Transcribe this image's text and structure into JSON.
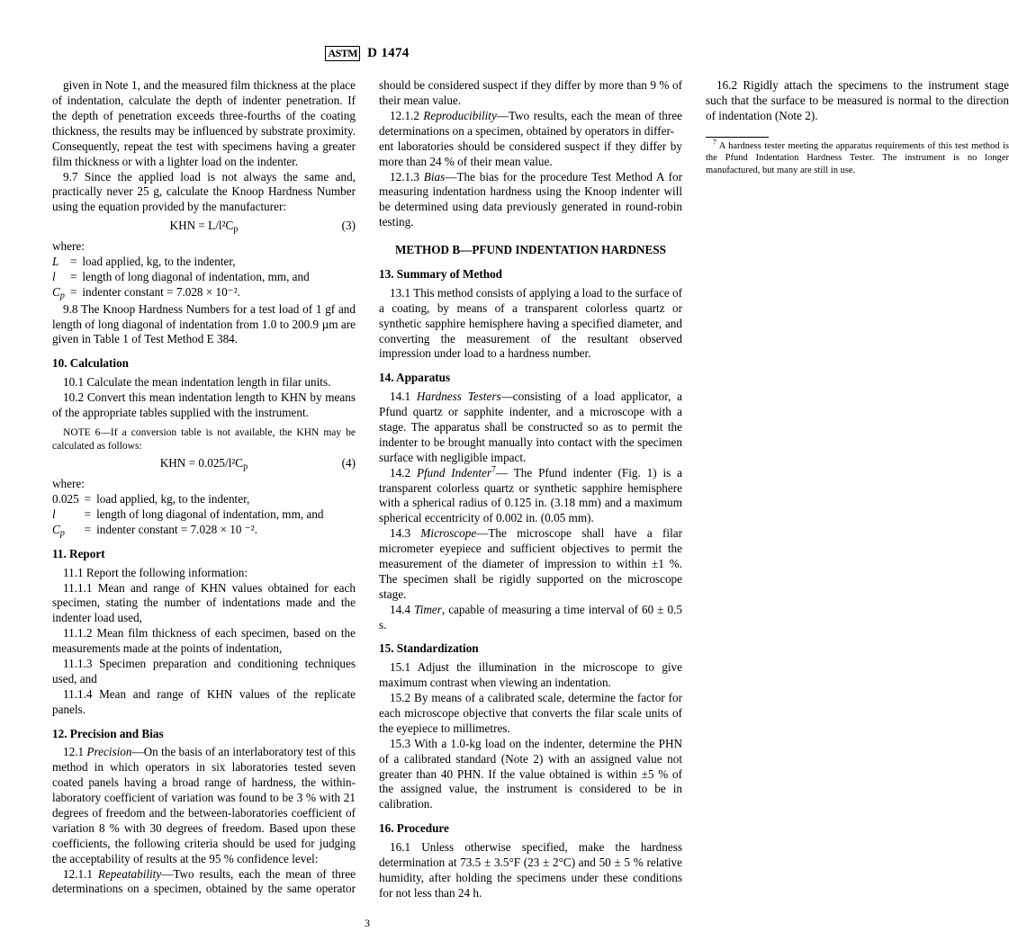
{
  "header": {
    "logo": "ASTM",
    "designation": "D 1474"
  },
  "left": {
    "p97a": "given in Note 1, and the measured film thickness at the place of indentation, calculate the depth of indenter penetration. If the depth of penetration exceeds three-fourths of the coating thickness, the results may be influenced by substrate proximity. Consequently, repeat the test with specimens having a greater film thickness or with a lighter load on the indenter.",
    "p97": "9.7 Since the applied load is not always the same and, practically never 25 g, calculate the Knoop Hardness Number using the equation provided by the manufacturer:",
    "eq3": "KHN = L/l²C",
    "eq3sub": "p",
    "eq3num": "(3)",
    "where": "where:",
    "defs1": [
      {
        "sym": "L",
        "eq": "=",
        "val": "load applied, kg, to the indenter,"
      },
      {
        "sym": "l",
        "eq": "=",
        "val": "length of long diagonal of indentation, mm, and"
      },
      {
        "sym": "C",
        "sub": "p",
        "eq": "=",
        "val": "indenter constant = 7.028 × 10⁻²."
      }
    ],
    "p98": "9.8 The Knoop Hardness Numbers for a test load of 1 gf and length of long diagonal of indentation from 1.0 to 200.9 µm are given in Table 1 of Test Method E 384.",
    "s10": "10.  Calculation",
    "p101": "10.1 Calculate the mean indentation length in filar units.",
    "p102": "10.2 Convert this mean indentation length to KHN by means of the appropriate tables supplied with the instrument.",
    "note6a": "N",
    "note6b": "OTE",
    "note6c": " 6—If a conversion table is not available, the KHN may be calculated as follows:",
    "eq4": "KHN = 0.025/l²C",
    "eq4sub": "p",
    "eq4num": "(4)",
    "defs2": [
      {
        "sym": "0.025",
        "eq": "=",
        "val": "load applied, kg, to the indenter,"
      },
      {
        "sym": "l",
        "eq": "=",
        "val": "length of long diagonal of indentation, mm, and"
      },
      {
        "sym": "C",
        "sub": "p",
        "eq": "=",
        "val": "indenter constant = 7.028 × 10 ⁻²."
      }
    ],
    "s11": "11.  Report",
    "p111": "11.1 Report the following information:",
    "p1111": "11.1.1 Mean and range of KHN values obtained for each specimen, stating the number of indentations made and the indenter load used,",
    "p1112": "11.1.2 Mean film thickness of each specimen, based on the measurements made at the points of indentation,",
    "p1113": "11.1.3 Specimen preparation and conditioning techniques used, and",
    "p1114": "11.1.4 Mean and range of KHN values of the replicate panels.",
    "s12": "12.  Precision and Bias",
    "p121a": "12.1 ",
    "p121i": "Precision",
    "p121b": "—On the basis of an interlaboratory test of this method in which operators in six laboratories tested seven coated panels having a broad range of hardness, the within-laboratory coefficient of variation was found to be 3 % with 21 degrees of freedom and the between-laboratories coefficient of variation 8 % with 30 degrees of freedom. Based upon these coefficients, the following criteria should be used for judging the acceptability of results at the 95 % confidence level:",
    "p1211a": "12.1.1 ",
    "p1211i": "Repeatability",
    "p1211b": "—Two results, each the mean of three determinations on a specimen, obtained by the same operator should be considered suspect if they differ by more than 9 % of their mean value.",
    "p1212a": "12.1.2 ",
    "p1212i": "Reproducibility",
    "p1212b": "—Two results, each the mean of three determinations on a specimen, obtained by operators in differ-"
  },
  "right": {
    "p1212c": "ent laboratories should be considered suspect if they differ by more than 24 % of their mean value.",
    "p1213a": "12.1.3 ",
    "p1213i": "Bias",
    "p1213b": "—The bias for the procedure Test Method A for measuring indentation hardness using the Knoop indenter will be determined using data previously generated in round-robin testing.",
    "methodB": "METHOD B—PFUND INDENTATION HARDNESS",
    "s13": "13.  Summary of Method",
    "p131": "13.1 This method consists of applying a load to the surface of a coating, by means of a transparent colorless quartz or synthetic sapphire hemisphere having a specified diameter, and converting the measurement of the resultant observed impression under load to a hardness number.",
    "s14": "14.  Apparatus",
    "p141a": "14.1 ",
    "p141i": "Hardness Testers",
    "p141b": "—consisting of a load applicator, a Pfund quartz or sapphite indenter, and a microscope with a stage. The apparatus shall be constructed so as to permit the indenter to be brought manually into contact with the specimen surface with negligible impact.",
    "p142a": "14.2 ",
    "p142i": "Pfund Indenter",
    "p142sup": "7",
    "p142b": "— The Pfund indenter (Fig. 1) is a transparent colorless quartz or synthetic sapphire hemisphere with a spherical radius of 0.125 in. (3.18 mm) and a maximum spherical eccentricity of 0.002 in. (0.05 mm).",
    "p143a": "14.3 ",
    "p143i": "Microscope",
    "p143b": "—The microscope shall have a filar micrometer eyepiece and sufficient objectives to permit the measurement of the diameter of impression to within ±1 %. The specimen shall be rigidly supported on the microscope stage.",
    "p144a": "14.4 ",
    "p144i": "Timer",
    "p144b": ", capable of measuring a time interval of 60 ± 0.5 s.",
    "s15": "15.  Standardization",
    "p151": "15.1 Adjust the illumination in the microscope to give maximum contrast when viewing an indentation.",
    "p152": "15.2 By means of a calibrated scale, determine the factor for each microscope objective that converts the filar scale units of the eyepiece to millimetres.",
    "p153": "15.3 With a 1.0-kg load on the indenter, determine the PHN of a calibrated standard (Note 2) with an assigned value not greater than 40 PHN. If the value obtained is within ±5 % of the assigned value, the instrument is considered to be in calibration.",
    "s16": "16.  Procedure",
    "p161": "16.1 Unless otherwise specified, make the hardness determination at 73.5 ± 3.5°F (23 ± 2°C) and 50 ± 5 % relative humidity, after holding the specimens under these conditions for not less than 24 h.",
    "p162": "16.2 Rigidly attach the specimens to the instrument stage such that the surface to be measured is normal to the direction of indentation (Note 2).",
    "fn7sup": "7",
    "fn7": " A hardness tester meeting the apparatus requirements of this test method is the Pfund Indentation Hardness Tester. The instrument is no longer manufactured, but many are still in use."
  },
  "pagenum": "3"
}
